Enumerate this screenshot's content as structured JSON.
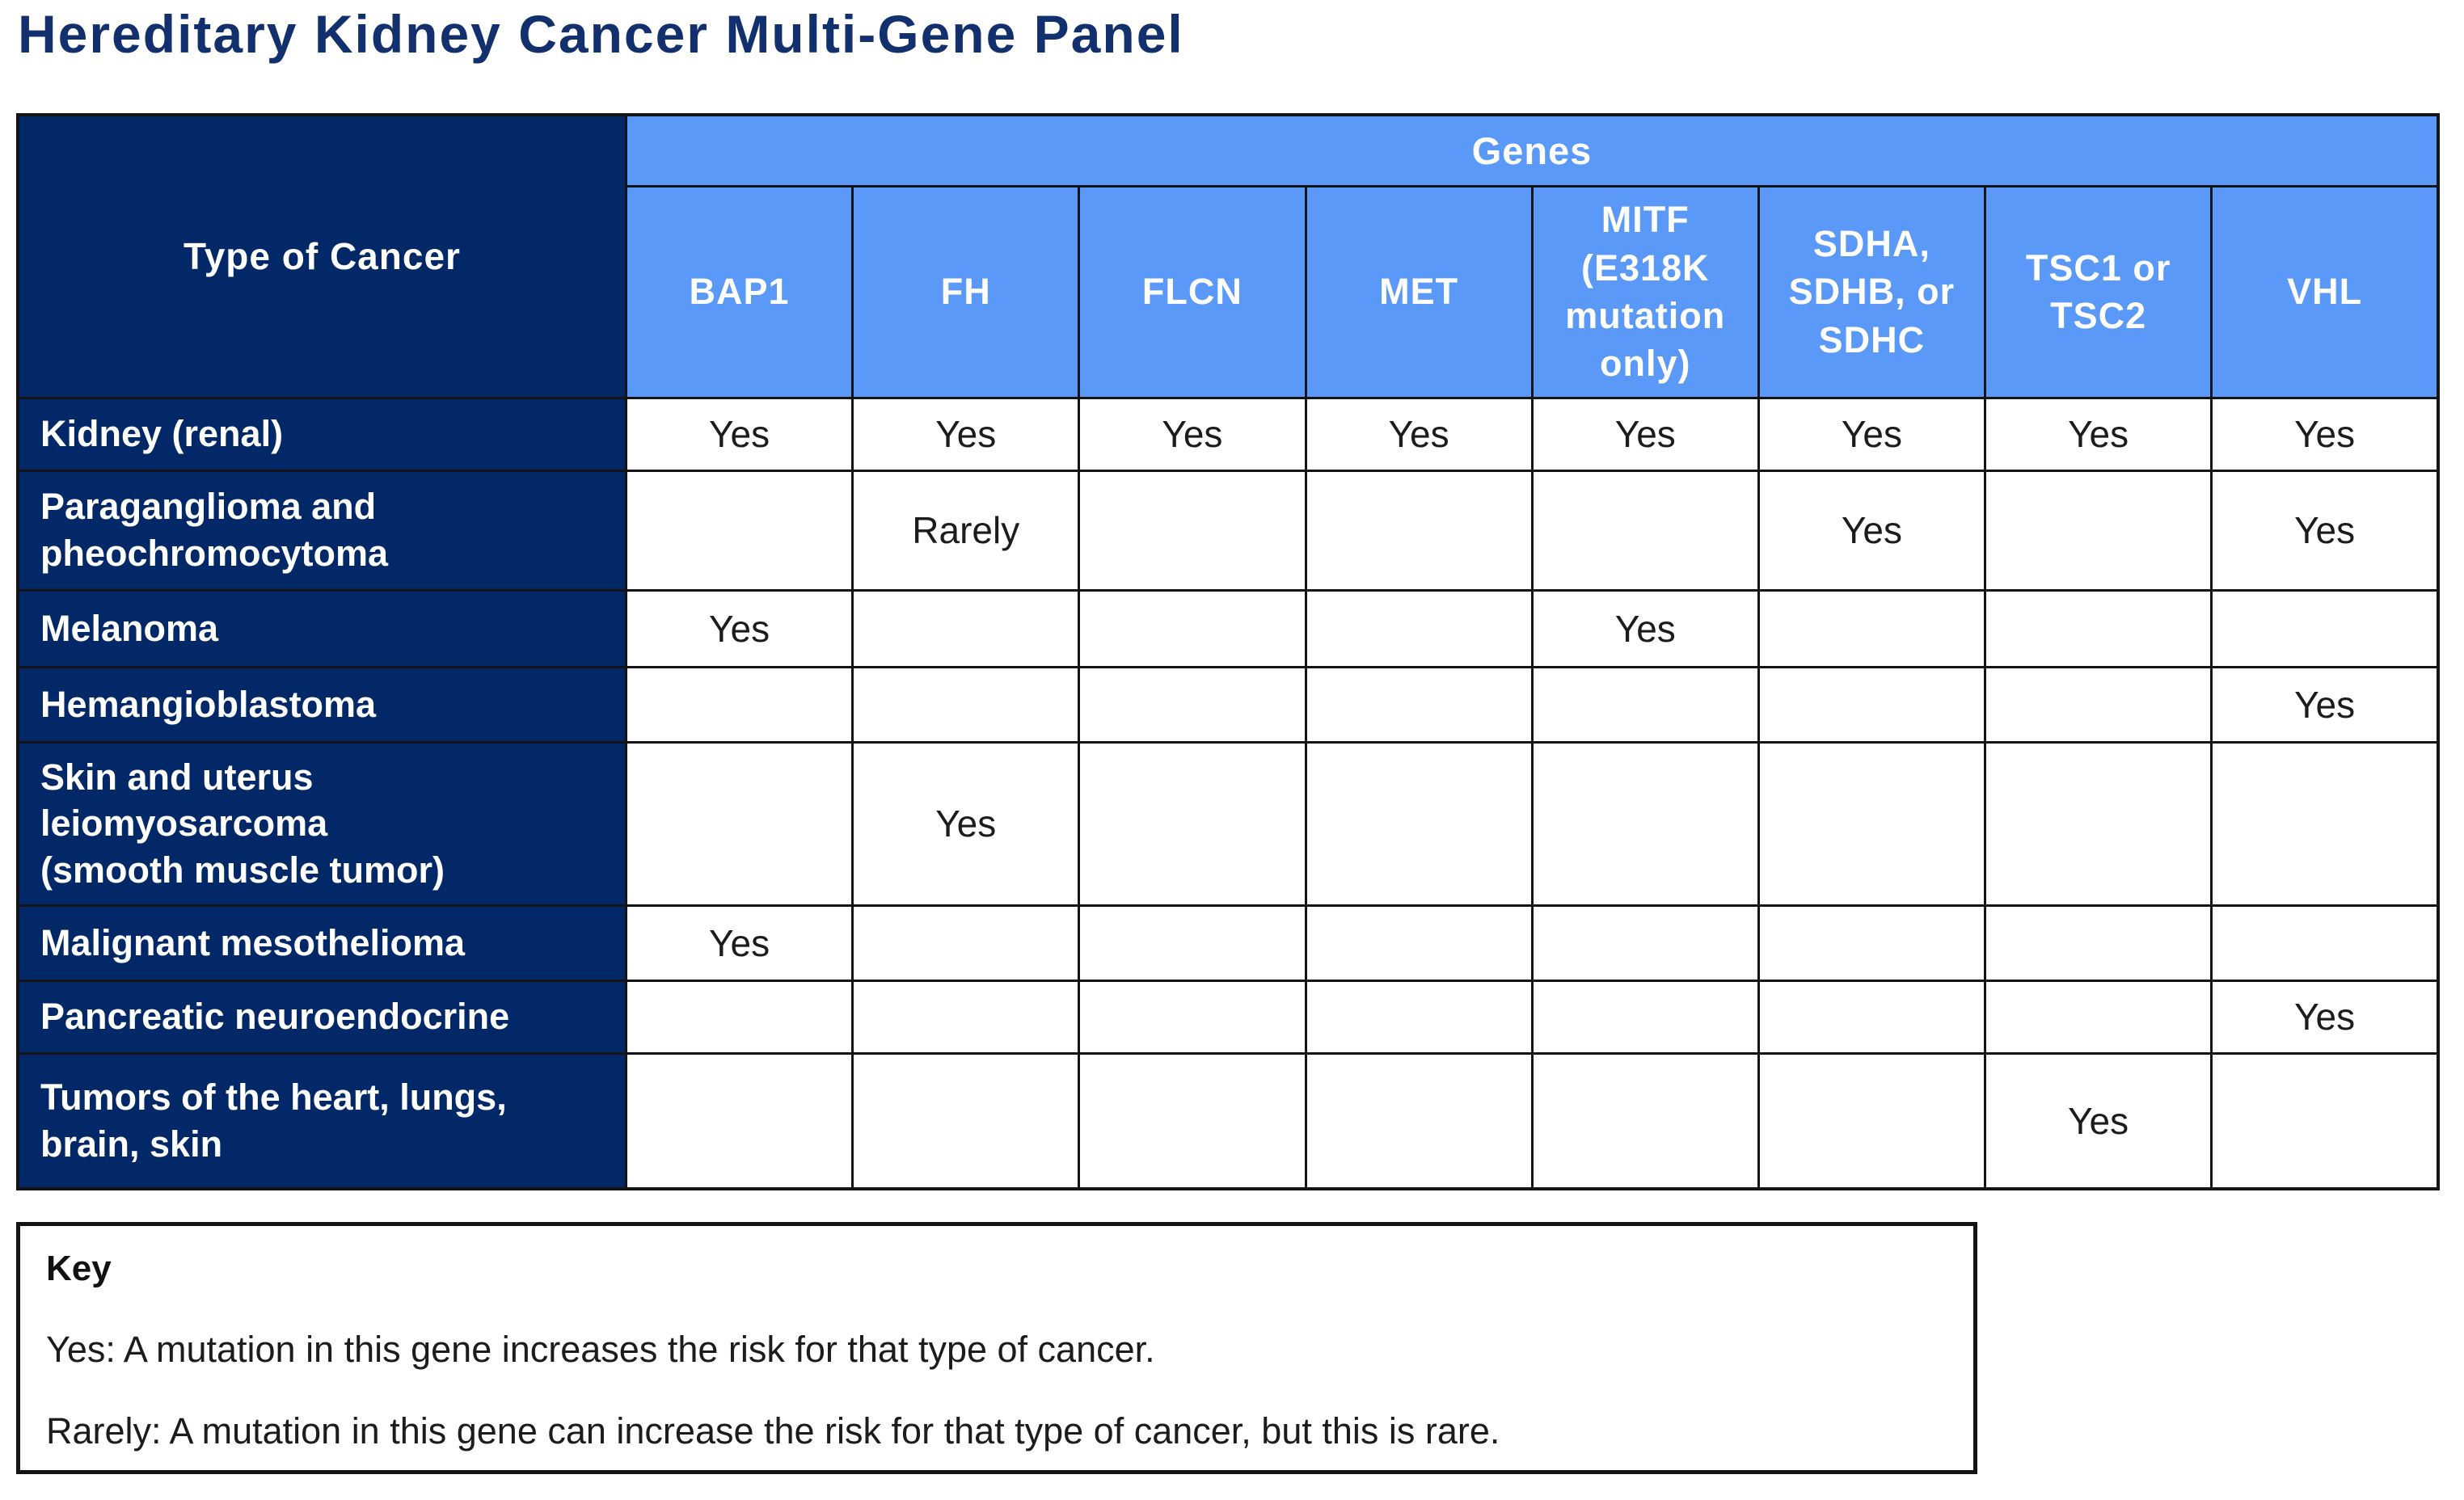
{
  "title": "Hereditary Kidney Cancer Multi-Gene Panel",
  "colors": {
    "navy": "#022868",
    "light_blue": "#5a99f8",
    "title_navy": "#12306e",
    "grid_black": "#141414"
  },
  "table": {
    "corner_header": "Type of Cancer",
    "genes_header": "Genes",
    "gene_columns": [
      "BAP1",
      "FH",
      "FLCN",
      "MET",
      "MITF\n(E318K\nmutation\nonly)",
      "SDHA,\nSDHB, or\nSDHC",
      "TSC1 or\nTSC2",
      "VHL"
    ],
    "rows": [
      {
        "cancer": "Kidney (renal)",
        "values": [
          "Yes",
          "Yes",
          "Yes",
          "Yes",
          "Yes",
          "Yes",
          "Yes",
          "Yes"
        ]
      },
      {
        "cancer": "Paraganglioma and\npheochromocytoma",
        "values": [
          "",
          "Rarely",
          "",
          "",
          "",
          "Yes",
          "",
          "Yes"
        ]
      },
      {
        "cancer": "Melanoma",
        "values": [
          "Yes",
          "",
          "",
          "",
          "Yes",
          "",
          "",
          ""
        ]
      },
      {
        "cancer": "Hemangioblastoma",
        "values": [
          "",
          "",
          "",
          "",
          "",
          "",
          "",
          "Yes"
        ]
      },
      {
        "cancer": "Skin and uterus\nleiomyosarcoma\n(smooth muscle tumor)",
        "values": [
          "",
          "Yes",
          "",
          "",
          "",
          "",
          "",
          ""
        ]
      },
      {
        "cancer": "Malignant mesothelioma",
        "values": [
          "Yes",
          "",
          "",
          "",
          "",
          "",
          "",
          ""
        ]
      },
      {
        "cancer": "Pancreatic neuroendocrine",
        "values": [
          "",
          "",
          "",
          "",
          "",
          "",
          "",
          "Yes"
        ]
      },
      {
        "cancer": "Tumors of the heart, lungs,\nbrain, skin",
        "values": [
          "",
          "",
          "",
          "",
          "",
          "",
          "Yes",
          ""
        ]
      }
    ]
  },
  "key": {
    "heading": "Key",
    "entries": [
      "Yes: A mutation in this gene increases the risk for that type of cancer.",
      "Rarely: A mutation in this gene can increase the risk for that type of cancer, but this is rare."
    ]
  }
}
